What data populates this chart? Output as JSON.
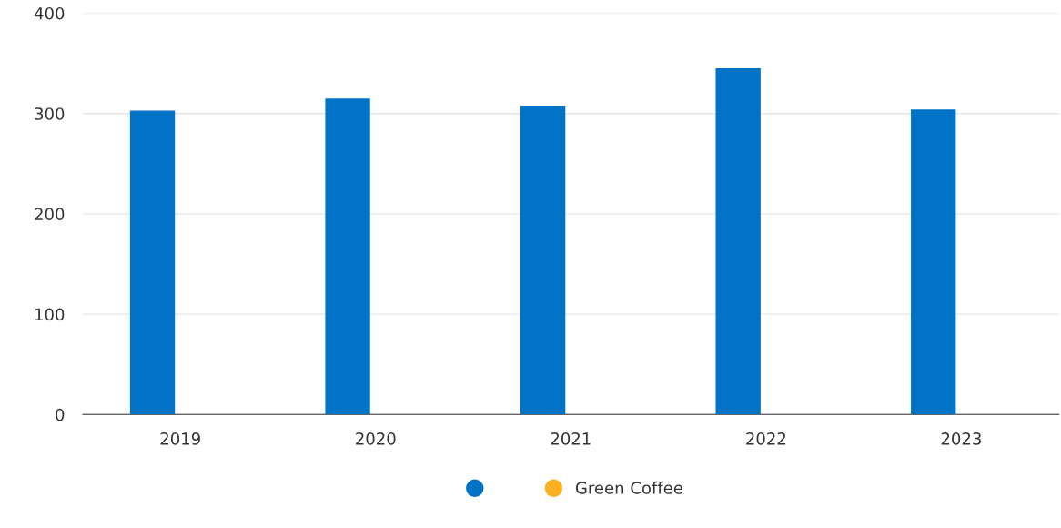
{
  "chart_data": {
    "type": "bar",
    "categories": [
      "2019",
      "2020",
      "2021",
      "2022",
      "2023"
    ],
    "series": [
      {
        "color": "#0073c6",
        "values": [
          303,
          315,
          308,
          345,
          304
        ]
      },
      {
        "name": "Green Coffee",
        "color": "#fbb024",
        "values": [
          null,
          null,
          null,
          null,
          null
        ]
      }
    ],
    "ylim": [
      0,
      400
    ],
    "yticks": [
      0,
      100,
      200,
      300,
      400
    ],
    "grid": "y",
    "legend": "bottom",
    "marker": "circle"
  }
}
